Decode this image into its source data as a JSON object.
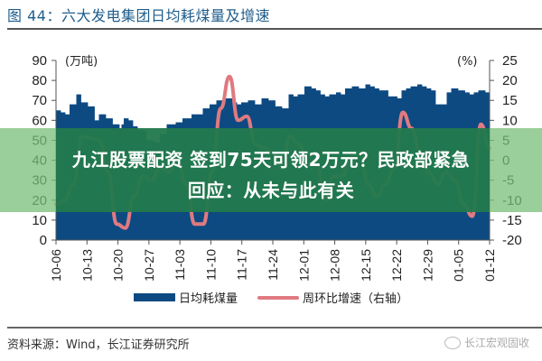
{
  "header": {
    "title": "图 44：六大发电集团日均耗煤量及增速"
  },
  "footer": {
    "source": "资料来源：Wind，长江证券研究所",
    "watermark": "长江宏观固收"
  },
  "overlay": {
    "line1": "九江股票配资 签到75天可领2万元？民政部紧急",
    "line2": "回应：从未与此有关"
  },
  "legend": {
    "bar_label": "日均耗煤量",
    "line_label": "周环比增速（右轴）"
  },
  "colors": {
    "bar": "#0d4a82",
    "line": "#e07a80",
    "overlay_outer": "#7fbf7f",
    "overlay_inner": "#157a4e"
  },
  "chart_data": {
    "type": "bar+line",
    "title": "图 44：六大发电集团日均耗煤量及增速",
    "left_axis": {
      "label": "(万吨)",
      "ticks": [
        0,
        10,
        20,
        30,
        40,
        50,
        60,
        70,
        80,
        90
      ],
      "range": [
        0,
        90
      ]
    },
    "right_axis": {
      "label": "(%)",
      "ticks": [
        -20,
        -15,
        -10,
        -5,
        0,
        5,
        10,
        15,
        20,
        25
      ],
      "range": [
        -20,
        25
      ]
    },
    "x_ticks": [
      "10-06",
      "10-13",
      "10-20",
      "10-27",
      "11-03",
      "11-10",
      "11-17",
      "11-24",
      "12-01",
      "12-08",
      "12-15",
      "12-22",
      "12-29",
      "01-05",
      "01-12"
    ],
    "series": [
      {
        "name": "日均耗煤量",
        "axis": "left",
        "type": "bar",
        "values": [
          65,
          65,
          64,
          64,
          63,
          63,
          68,
          68,
          68,
          73,
          73,
          69,
          69,
          69,
          67,
          67,
          67,
          60,
          60,
          63,
          63,
          63,
          61,
          61,
          61,
          58,
          58,
          58,
          56,
          58,
          61,
          61,
          60,
          60,
          57,
          57,
          55,
          55,
          55,
          55,
          50,
          50,
          50,
          49,
          49,
          49,
          53,
          53,
          53,
          58,
          58,
          58,
          58,
          59,
          59,
          59,
          61,
          61,
          61,
          61,
          63,
          63,
          63,
          63,
          63,
          66,
          66,
          66,
          68,
          68,
          68,
          70,
          70,
          70,
          71,
          71,
          71,
          71,
          69,
          69,
          68,
          68,
          69,
          69,
          69,
          70,
          70,
          70,
          68,
          68,
          68,
          71,
          71,
          71,
          70,
          70,
          70,
          67,
          67,
          67,
          66,
          66,
          66,
          73,
          73,
          72,
          72,
          73,
          73,
          73,
          77,
          77,
          77,
          76,
          76,
          75,
          75,
          73,
          73,
          72,
          72,
          73,
          73,
          73,
          74,
          74,
          73,
          73,
          76,
          76,
          76,
          77,
          77,
          77,
          76,
          76,
          76,
          78,
          78,
          77,
          77,
          76,
          76,
          75,
          75,
          75,
          75,
          72,
          72,
          72,
          72,
          71,
          71,
          75,
          75,
          76,
          76,
          77,
          77,
          77,
          78,
          78,
          77,
          77,
          76,
          76,
          75,
          75,
          68,
          68,
          68,
          68,
          68,
          74,
          74,
          76,
          76,
          76,
          75,
          75,
          75,
          74,
          74,
          73,
          73,
          74,
          74,
          75,
          75,
          75,
          74,
          74
        ],
        "note": "approx. daily values read from bar tops"
      },
      {
        "name": "周环比增速（右轴）",
        "axis": "right",
        "type": "line",
        "x_norm": [
          0,
          0.02,
          0.04,
          0.06,
          0.08,
          0.1,
          0.12,
          0.14,
          0.16,
          0.18,
          0.2,
          0.22,
          0.24,
          0.26,
          0.28,
          0.3,
          0.32,
          0.34,
          0.36,
          0.38,
          0.4,
          0.42,
          0.44,
          0.46,
          0.48,
          0.5,
          0.52,
          0.54,
          0.56,
          0.58,
          0.6,
          0.62,
          0.64,
          0.66,
          0.68,
          0.7,
          0.72,
          0.74,
          0.76,
          0.78,
          0.8,
          0.82,
          0.84,
          0.86,
          0.88,
          0.9,
          0.92,
          0.94,
          0.96,
          0.98,
          1.0
        ],
        "values": [
          -11,
          -10,
          -6,
          6,
          5.5,
          5,
          -3,
          -16,
          -17,
          -9,
          -4,
          -5,
          -2,
          -3,
          0,
          -6,
          -16,
          -16,
          -3,
          13,
          21,
          10,
          11,
          4,
          3,
          2,
          -2,
          6,
          4,
          -1,
          0,
          -10,
          -4,
          -4,
          1,
          2,
          -6,
          -9,
          -6,
          -2,
          12,
          8,
          2,
          -3,
          -6,
          -3,
          -5,
          -11,
          -14,
          9,
          3
        ],
        "note": "approximate, read from curve"
      }
    ],
    "legend_position": "bottom",
    "grid": false
  }
}
